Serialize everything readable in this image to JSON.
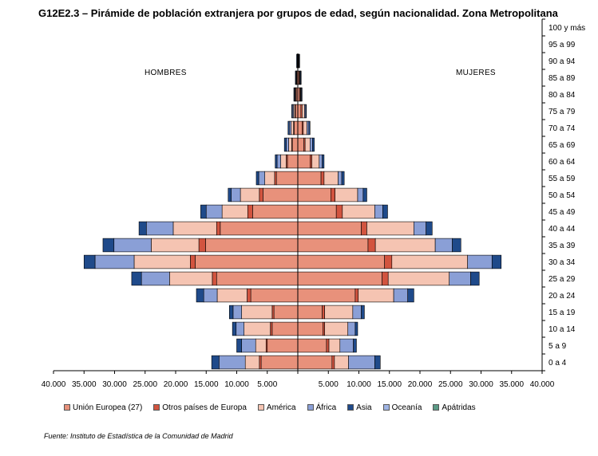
{
  "title": "G12E2.3 – Pirámide de población extranjera por grupos de edad, según nacionalidad. Zona Metropolitana",
  "side_labels": {
    "left": "HOMBRES",
    "right": "MUJERES"
  },
  "source": "Fuente: Instituto de Estadística de la Comunidad de Madrid",
  "colors": {
    "Unión Europea (27)": "#e8917b",
    "Otros países de Europa": "#d2543f",
    "América": "#f5c4b2",
    "África": "#8a9fd6",
    "Asia": "#1f4a8a",
    "Oceanía": "#9fb4e4",
    "Apátridas": "#5c9a86"
  },
  "chart_data": {
    "type": "bar",
    "orientation": "horizontal",
    "stacked": true,
    "xlim": [
      -40000,
      40000
    ],
    "x_ticks": [
      "40.000",
      "35.000",
      "30.000",
      "25.000",
      "20.000",
      "15.000",
      "10.000",
      "5.000",
      "",
      "5.000",
      "10.000",
      "15.000",
      "20.000",
      "25.000",
      "30.000",
      "35.000",
      "40.000"
    ],
    "categories": [
      "0 a 4",
      "5 a 9",
      "10 a 14",
      "15 a 19",
      "20 a 24",
      "25 a 29",
      "30 a 34",
      "35 a 39",
      "40 a 44",
      "45 a 49",
      "50 a 54",
      "55 a 59",
      "60 a 64",
      "65 a 69",
      "70 a 74",
      "75 a 79",
      "80 a 84",
      "85 a 89",
      "90 a 94",
      "95 a 99",
      "100 y más"
    ],
    "series_names": [
      "Unión Europea (27)",
      "Otros países de Europa",
      "América",
      "África",
      "Asia",
      "Oceanía",
      "Apátridas"
    ],
    "hombres": [
      [
        6000,
        300,
        2300,
        4300,
        1200,
        0,
        0
      ],
      [
        5000,
        200,
        1700,
        2300,
        800,
        0,
        0
      ],
      [
        4200,
        300,
        4300,
        1300,
        600,
        0,
        0
      ],
      [
        3900,
        300,
        5000,
        1400,
        600,
        0,
        0
      ],
      [
        7700,
        600,
        4900,
        2200,
        1200,
        0,
        0
      ],
      [
        13300,
        700,
        7000,
        4600,
        1600,
        0,
        0
      ],
      [
        16800,
        800,
        9200,
        6400,
        1800,
        0,
        0
      ],
      [
        15100,
        1100,
        7800,
        6100,
        1800,
        0,
        0
      ],
      [
        12700,
        600,
        7100,
        4400,
        1200,
        0,
        0
      ],
      [
        7400,
        800,
        4200,
        2600,
        900,
        0,
        0
      ],
      [
        5700,
        600,
        3100,
        1500,
        500,
        0,
        0
      ],
      [
        3500,
        300,
        1600,
        1000,
        400,
        0,
        0
      ],
      [
        1700,
        200,
        900,
        600,
        300,
        0,
        0
      ],
      [
        900,
        100,
        500,
        400,
        300,
        0,
        0
      ],
      [
        600,
        100,
        400,
        300,
        200,
        0,
        0
      ],
      [
        400,
        100,
        200,
        200,
        100,
        0,
        0
      ],
      [
        300,
        50,
        100,
        100,
        100,
        0,
        0
      ],
      [
        200,
        50,
        50,
        50,
        50,
        0,
        0
      ],
      [
        100,
        0,
        50,
        0,
        50,
        0,
        0
      ],
      [
        0,
        0,
        0,
        0,
        0,
        0,
        0
      ],
      [
        0,
        0,
        0,
        0,
        0,
        0,
        0
      ]
    ],
    "mujeres": [
      [
        5600,
        400,
        2300,
        4300,
        900,
        0,
        0
      ],
      [
        4700,
        400,
        1800,
        2200,
        500,
        0,
        0
      ],
      [
        4100,
        300,
        3800,
        1200,
        400,
        0,
        0
      ],
      [
        4000,
        400,
        4600,
        1400,
        500,
        0,
        0
      ],
      [
        9400,
        500,
        5800,
        2300,
        1000,
        0,
        0
      ],
      [
        13800,
        1000,
        10000,
        3500,
        1400,
        0,
        0
      ],
      [
        14200,
        1200,
        12400,
        4000,
        1500,
        0,
        0
      ],
      [
        11500,
        1200,
        9800,
        2800,
        1400,
        0,
        0
      ],
      [
        10400,
        900,
        7700,
        2000,
        1000,
        0,
        0
      ],
      [
        6300,
        1000,
        5300,
        1300,
        800,
        0,
        0
      ],
      [
        5400,
        700,
        3700,
        900,
        600,
        0,
        0
      ],
      [
        3800,
        500,
        2300,
        600,
        400,
        0,
        0
      ],
      [
        2000,
        300,
        1200,
        500,
        300,
        0,
        0
      ],
      [
        1000,
        200,
        800,
        400,
        300,
        0,
        0
      ],
      [
        700,
        200,
        600,
        300,
        200,
        0,
        0
      ],
      [
        500,
        200,
        400,
        200,
        100,
        0,
        0
      ],
      [
        300,
        100,
        100,
        100,
        100,
        0,
        0
      ],
      [
        200,
        100,
        100,
        50,
        50,
        0,
        0
      ],
      [
        100,
        50,
        50,
        0,
        50,
        0,
        0
      ],
      [
        0,
        0,
        0,
        0,
        0,
        0,
        0
      ],
      [
        0,
        0,
        0,
        0,
        0,
        0,
        0
      ]
    ]
  }
}
